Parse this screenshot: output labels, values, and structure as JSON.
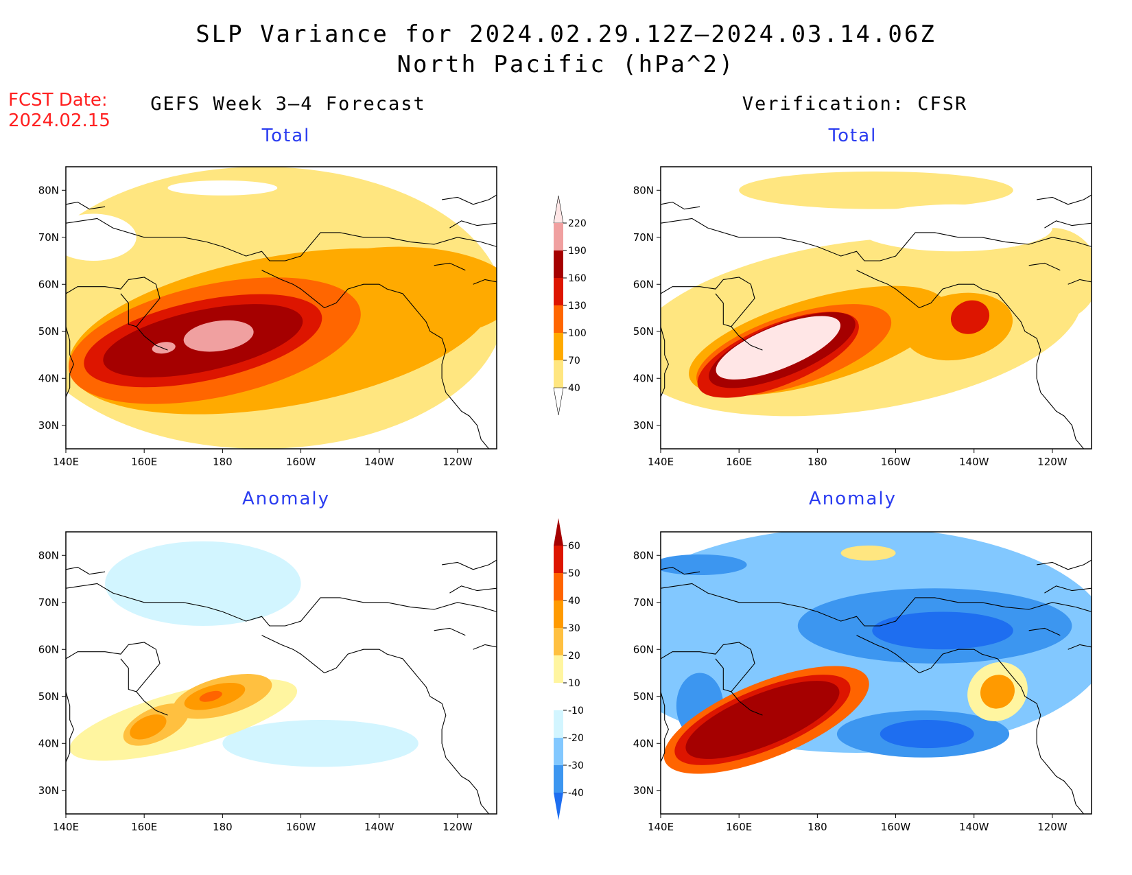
{
  "title": {
    "line1": "SLP Variance for 2024.02.29.12Z–2024.03.14.06Z",
    "line2": "North Pacific (hPa^2)"
  },
  "fcst": {
    "label": "FCST Date:",
    "date": "2024.02.15"
  },
  "columns": {
    "left": "GEFS Week 3–4 Forecast",
    "right": "Verification: CFSR"
  },
  "subtitles": {
    "total": "Total",
    "anomaly": "Anomaly"
  },
  "axes": {
    "lon_labels": [
      "140E",
      "160E",
      "180",
      "160W",
      "140W",
      "120W"
    ],
    "lon_values": [
      140,
      160,
      180,
      200,
      220,
      240
    ],
    "lat_labels": [
      "30N",
      "40N",
      "50N",
      "60N",
      "70N",
      "80N"
    ],
    "lat_values": [
      30,
      40,
      50,
      60,
      70,
      80
    ],
    "lon_range": [
      140,
      250
    ],
    "lat_range": [
      25,
      85
    ]
  },
  "colorbars": {
    "total": {
      "levels": [
        "40",
        "70",
        "100",
        "130",
        "160",
        "190",
        "220"
      ],
      "colors": [
        "#ffffff",
        "#ffe680",
        "#ffaa00",
        "#ff6600",
        "#dd1500",
        "#a50000",
        "#f0a0a0",
        "#ffe6e6"
      ]
    },
    "anomaly": {
      "levels": [
        "-40",
        "-30",
        "-20",
        "-10",
        "10",
        "20",
        "30",
        "40",
        "50",
        "60"
      ],
      "colors": [
        "#1e6ef0",
        "#3c96f0",
        "#82c8ff",
        "#d2f5ff",
        "#ffffff",
        "#fff5a0",
        "#ffc040",
        "#ff9a00",
        "#ff6400",
        "#dd1500",
        "#a50000"
      ]
    }
  },
  "panels": {
    "fcst_total": {
      "blobs": [
        {
          "c": "#ffe680",
          "lon": 190,
          "lat": 55,
          "rx": 62,
          "ry": 30,
          "rot": 0
        },
        {
          "c": "#ffaa00",
          "lon": 195,
          "lat": 50,
          "rx": 55,
          "ry": 16,
          "rot": -10
        },
        {
          "c": "#ffaa00",
          "lon": 225,
          "lat": 58,
          "rx": 30,
          "ry": 10,
          "rot": 0
        },
        {
          "c": "#ff6600",
          "lon": 178,
          "lat": 48,
          "rx": 38,
          "ry": 12,
          "rot": -12
        },
        {
          "c": "#dd1500",
          "lon": 175,
          "lat": 48,
          "rx": 31,
          "ry": 8.5,
          "rot": -12
        },
        {
          "c": "#a50000",
          "lon": 175,
          "lat": 48,
          "rx": 26,
          "ry": 6.5,
          "rot": -12
        },
        {
          "c": "#f0a0a0",
          "lon": 179,
          "lat": 49,
          "rx": 9,
          "ry": 3.2,
          "rot": -8
        },
        {
          "c": "#f0a0a0",
          "lon": 165,
          "lat": 46.5,
          "rx": 3,
          "ry": 1.2,
          "rot": -8
        }
      ],
      "white": [
        {
          "lon": 147,
          "lat": 70,
          "rx": 11,
          "ry": 5
        },
        {
          "lon": 180,
          "lat": 80.5,
          "rx": 14,
          "ry": 1.6
        }
      ]
    },
    "cfsr_total": {
      "blobs": [
        {
          "c": "#ffe680",
          "lon": 190,
          "lat": 51,
          "rx": 58,
          "ry": 18,
          "rot": -8
        },
        {
          "c": "#ffe680",
          "lon": 195,
          "lat": 80,
          "rx": 35,
          "ry": 4,
          "rot": 0
        },
        {
          "c": "#ffe680",
          "lon": 240,
          "lat": 62,
          "rx": 12,
          "ry": 10,
          "rot": 0
        },
        {
          "c": "#ffaa00",
          "lon": 180,
          "lat": 48,
          "rx": 34,
          "ry": 9,
          "rot": -16
        },
        {
          "c": "#ffaa00",
          "lon": 216,
          "lat": 51,
          "rx": 14,
          "ry": 7,
          "rot": -10
        },
        {
          "c": "#ff6600",
          "lon": 174,
          "lat": 46,
          "rx": 26,
          "ry": 7.5,
          "rot": -18
        },
        {
          "c": "#dd1500",
          "lon": 170,
          "lat": 45,
          "rx": 22,
          "ry": 6.5,
          "rot": -22
        },
        {
          "c": "#dd1500",
          "lon": 219,
          "lat": 53,
          "rx": 5,
          "ry": 3.5,
          "rot": -20
        },
        {
          "c": "#a50000",
          "lon": 171,
          "lat": 46,
          "rx": 20,
          "ry": 5.5,
          "rot": -22
        },
        {
          "c": "#ffe6e6",
          "lon": 170,
          "lat": 46.5,
          "rx": 17,
          "ry": 4.5,
          "rot": -22
        }
      ],
      "white": [
        {
          "lon": 215,
          "lat": 72,
          "rx": 25,
          "ry": 5
        }
      ]
    },
    "fcst_anom": {
      "blobs": [
        {
          "c": "#d2f5ff",
          "lon": 175,
          "lat": 74,
          "rx": 25,
          "ry": 9,
          "rot": 0
        },
        {
          "c": "#d2f5ff",
          "lon": 205,
          "lat": 40,
          "rx": 25,
          "ry": 5,
          "rot": 0
        },
        {
          "c": "#fff5a0",
          "lon": 170,
          "lat": 45,
          "rx": 30,
          "ry": 6,
          "rot": -15
        },
        {
          "c": "#ffc040",
          "lon": 180,
          "lat": 50,
          "rx": 13,
          "ry": 4,
          "rot": -15
        },
        {
          "c": "#ffc040",
          "lon": 163,
          "lat": 44,
          "rx": 9,
          "ry": 3.5,
          "rot": -25
        },
        {
          "c": "#ff9a00",
          "lon": 178,
          "lat": 50,
          "rx": 8,
          "ry": 2.4,
          "rot": -15
        },
        {
          "c": "#ff9a00",
          "lon": 161,
          "lat": 43.5,
          "rx": 5,
          "ry": 2.2,
          "rot": -25
        },
        {
          "c": "#ff6400",
          "lon": 177,
          "lat": 50,
          "rx": 3,
          "ry": 1,
          "rot": -15
        }
      ]
    },
    "cfsr_anom": {
      "blobs": [
        {
          "c": "#82c8ff",
          "lon": 190,
          "lat": 62,
          "rx": 65,
          "ry": 24,
          "rot": 0
        },
        {
          "c": "#3c96f0",
          "lon": 210,
          "lat": 65,
          "rx": 35,
          "ry": 8,
          "rot": 0
        },
        {
          "c": "#3c96f0",
          "lon": 150,
          "lat": 78,
          "rx": 12,
          "ry": 2.2,
          "rot": 0
        },
        {
          "c": "#3c96f0",
          "lon": 150,
          "lat": 48,
          "rx": 6,
          "ry": 7,
          "rot": 0
        },
        {
          "c": "#3c96f0",
          "lon": 207,
          "lat": 42,
          "rx": 22,
          "ry": 5,
          "rot": 0
        },
        {
          "c": "#1e6ef0",
          "lon": 208,
          "lat": 42,
          "rx": 12,
          "ry": 3,
          "rot": 0
        },
        {
          "c": "#1e6ef0",
          "lon": 212,
          "lat": 64,
          "rx": 18,
          "ry": 4,
          "rot": 0
        },
        {
          "c": "#ffe680",
          "lon": 193,
          "lat": 80.5,
          "rx": 7,
          "ry": 1.6,
          "rot": 0
        },
        {
          "c": "#fff5a0",
          "lon": 226,
          "lat": 51,
          "rx": 8,
          "ry": 6,
          "rot": -40
        },
        {
          "c": "#ff9a00",
          "lon": 226,
          "lat": 51,
          "rx": 4.5,
          "ry": 3.5,
          "rot": -40
        },
        {
          "c": "#ff6400",
          "lon": 167,
          "lat": 45,
          "rx": 28,
          "ry": 8,
          "rot": -22
        },
        {
          "c": "#dd1500",
          "lon": 166,
          "lat": 45,
          "rx": 24,
          "ry": 6.5,
          "rot": -22
        },
        {
          "c": "#a50000",
          "lon": 166,
          "lat": 45,
          "rx": 21,
          "ry": 5.5,
          "rot": -22
        }
      ]
    }
  }
}
